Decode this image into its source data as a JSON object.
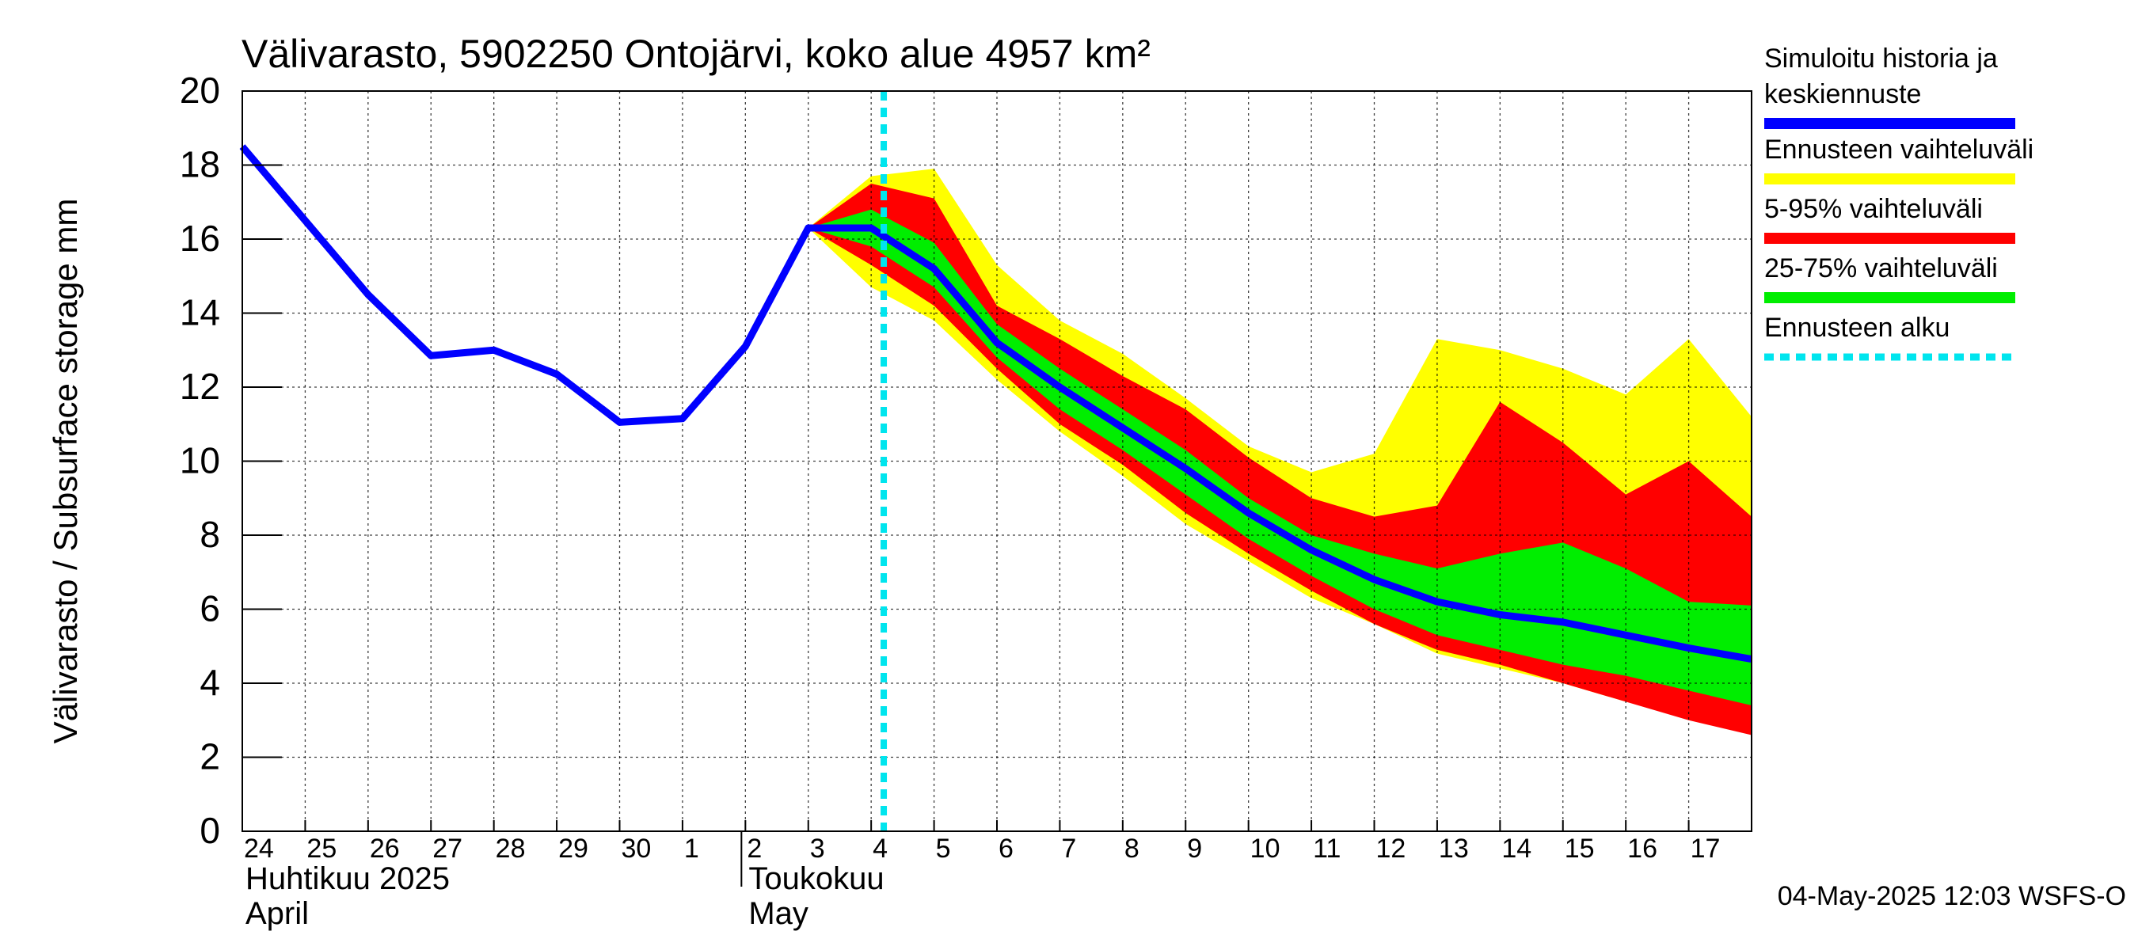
{
  "chart_data": {
    "type": "area",
    "title": "Välivarasto, 5902250 Ontojärvi, koko alue 4957 km²",
    "ylabel": "Välivarasto / Subsurface storage  mm",
    "ylim": [
      0,
      20
    ],
    "yticks": [
      0,
      2,
      4,
      6,
      8,
      10,
      12,
      14,
      16,
      18,
      20
    ],
    "x_day_index_range": [
      0,
      24
    ],
    "day_labels": [
      "24",
      "25",
      "26",
      "27",
      "28",
      "29",
      "30",
      "1",
      "2",
      "3",
      "4",
      "5",
      "6",
      "7",
      "8",
      "9",
      "10",
      "11",
      "12",
      "13",
      "14",
      "15",
      "16",
      "17"
    ],
    "month_labels": [
      {
        "fi": "Huhtikuu  2025",
        "en": "April",
        "day_index": 0
      },
      {
        "fi": "Toukokuu",
        "en": "May",
        "day_index": 8
      }
    ],
    "forecast_start_day_index": 10.2,
    "series": [
      {
        "name": "Simuloitu historia ja keskiennuste",
        "color": "#0000ff",
        "x": [
          0,
          1,
          2,
          3,
          4,
          5,
          6,
          7,
          8,
          9,
          10,
          11,
          12,
          13,
          14,
          15,
          16,
          17,
          18,
          19,
          20,
          21,
          22,
          23,
          24
        ],
        "values": [
          18.5,
          16.5,
          14.5,
          12.85,
          13.0,
          12.35,
          11.05,
          11.15,
          13.1,
          16.3,
          16.3,
          15.2,
          13.2,
          12.0,
          10.9,
          9.8,
          8.6,
          7.6,
          6.8,
          6.2,
          5.85,
          5.65,
          5.3,
          4.95,
          4.65
        ]
      }
    ],
    "bands": [
      {
        "name": "Ennusteen vaihteluväli",
        "color": "#ffff00",
        "x": [
          9,
          10,
          11,
          12,
          13,
          14,
          15,
          16,
          17,
          18,
          19,
          20,
          21,
          22,
          23,
          24
        ],
        "upper": [
          16.3,
          17.7,
          17.9,
          15.3,
          13.8,
          12.9,
          11.7,
          10.4,
          9.7,
          10.2,
          13.3,
          13.0,
          12.5,
          11.8,
          13.3,
          11.2
        ],
        "lower": [
          16.3,
          14.7,
          13.8,
          12.2,
          10.8,
          9.6,
          8.3,
          7.3,
          6.3,
          5.6,
          4.8,
          4.4,
          4.0,
          3.5,
          3.1,
          2.7
        ]
      },
      {
        "name": "5-95% vaihteluväli",
        "color": "#ff0000",
        "x": [
          9,
          10,
          11,
          12,
          13,
          14,
          15,
          16,
          17,
          18,
          19,
          20,
          21,
          22,
          23,
          24
        ],
        "upper": [
          16.3,
          17.5,
          17.1,
          14.2,
          13.3,
          12.3,
          11.4,
          10.1,
          9.0,
          8.5,
          8.8,
          11.6,
          10.5,
          9.1,
          10.0,
          8.5
        ],
        "lower": [
          16.3,
          15.3,
          14.2,
          12.5,
          11.0,
          9.9,
          8.6,
          7.5,
          6.5,
          5.6,
          4.9,
          4.5,
          4.0,
          3.5,
          3.0,
          2.6
        ]
      },
      {
        "name": "25-75% vaihteluväli",
        "color": "#00ee00",
        "x": [
          9,
          10,
          11,
          12,
          13,
          14,
          15,
          16,
          17,
          18,
          19,
          20,
          21,
          22,
          23,
          24
        ],
        "upper": [
          16.3,
          16.8,
          15.9,
          13.7,
          12.5,
          11.4,
          10.3,
          9.0,
          8.0,
          7.5,
          7.1,
          7.5,
          7.8,
          7.1,
          6.2,
          6.1
        ],
        "lower": [
          16.3,
          15.8,
          14.7,
          12.8,
          11.4,
          10.3,
          9.1,
          7.9,
          6.9,
          6.0,
          5.3,
          4.9,
          4.5,
          4.2,
          3.8,
          3.4
        ]
      }
    ],
    "legend": {
      "placement": "right",
      "items": [
        {
          "label_lines": [
            "Simuloitu historia ja",
            "keskiennuste"
          ],
          "color": "#0000ff",
          "style": "solid"
        },
        {
          "label_lines": [
            "Ennusteen vaihteluväli"
          ],
          "color": "#ffff00",
          "style": "solid"
        },
        {
          "label_lines": [
            "5-95% vaihteluväli"
          ],
          "color": "#ff0000",
          "style": "solid"
        },
        {
          "label_lines": [
            "25-75% vaihteluväli"
          ],
          "color": "#00ee00",
          "style": "solid"
        },
        {
          "label_lines": [
            "Ennusteen alku"
          ],
          "color": "#00e5ee",
          "style": "dashed"
        }
      ]
    },
    "footer": "04-May-2025 12:03 WSFS-O"
  }
}
